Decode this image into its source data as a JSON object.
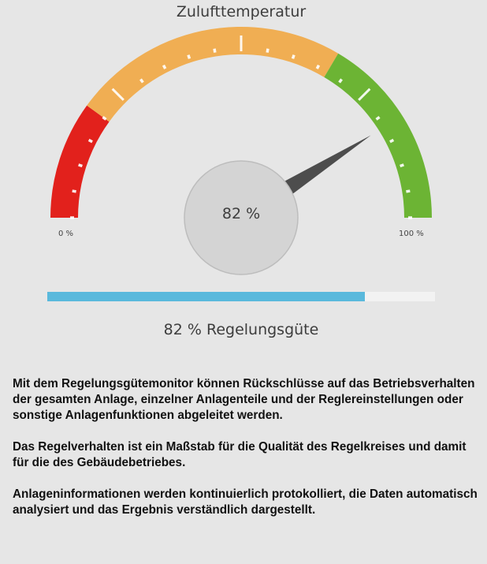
{
  "gauge": {
    "title": "Zulufttemperatur",
    "value_percent": 82,
    "value_label": "82 %",
    "min_label": "0 %",
    "max_label": "100 %",
    "zones": [
      {
        "name": "red",
        "from": 0,
        "to": 20,
        "color": "#e2211c"
      },
      {
        "name": "orange",
        "from": 20,
        "to": 67,
        "color": "#f0ae53"
      },
      {
        "name": "green",
        "from": 67,
        "to": 100,
        "color": "#6cb434"
      }
    ],
    "needle_color": "#4d4d4d",
    "hub_color": "#d4d4d4"
  },
  "progress": {
    "fraction": 0.82,
    "color": "#5ab9dc",
    "caption": "82 % Regelungsgüte"
  },
  "description": {
    "paragraphs": [
      "Mit dem Regelungsgütemonitor können Rückschlüsse auf das Betriebsverhalten der gesamten Anlage, einzelner Anlagenteile und der Reglereinstellungen oder sonstige Anlagenfunktionen abgeleitet werden.",
      "Das Regelverhalten ist ein Maßstab für die Qualität des Regelkreises und damit für die des Gebäudebetriebes.",
      "Anlageninformationen werden kontinuierlich protokolliert, die Daten automatisch analysiert und das Ergebnis verständlich dargestellt."
    ]
  }
}
